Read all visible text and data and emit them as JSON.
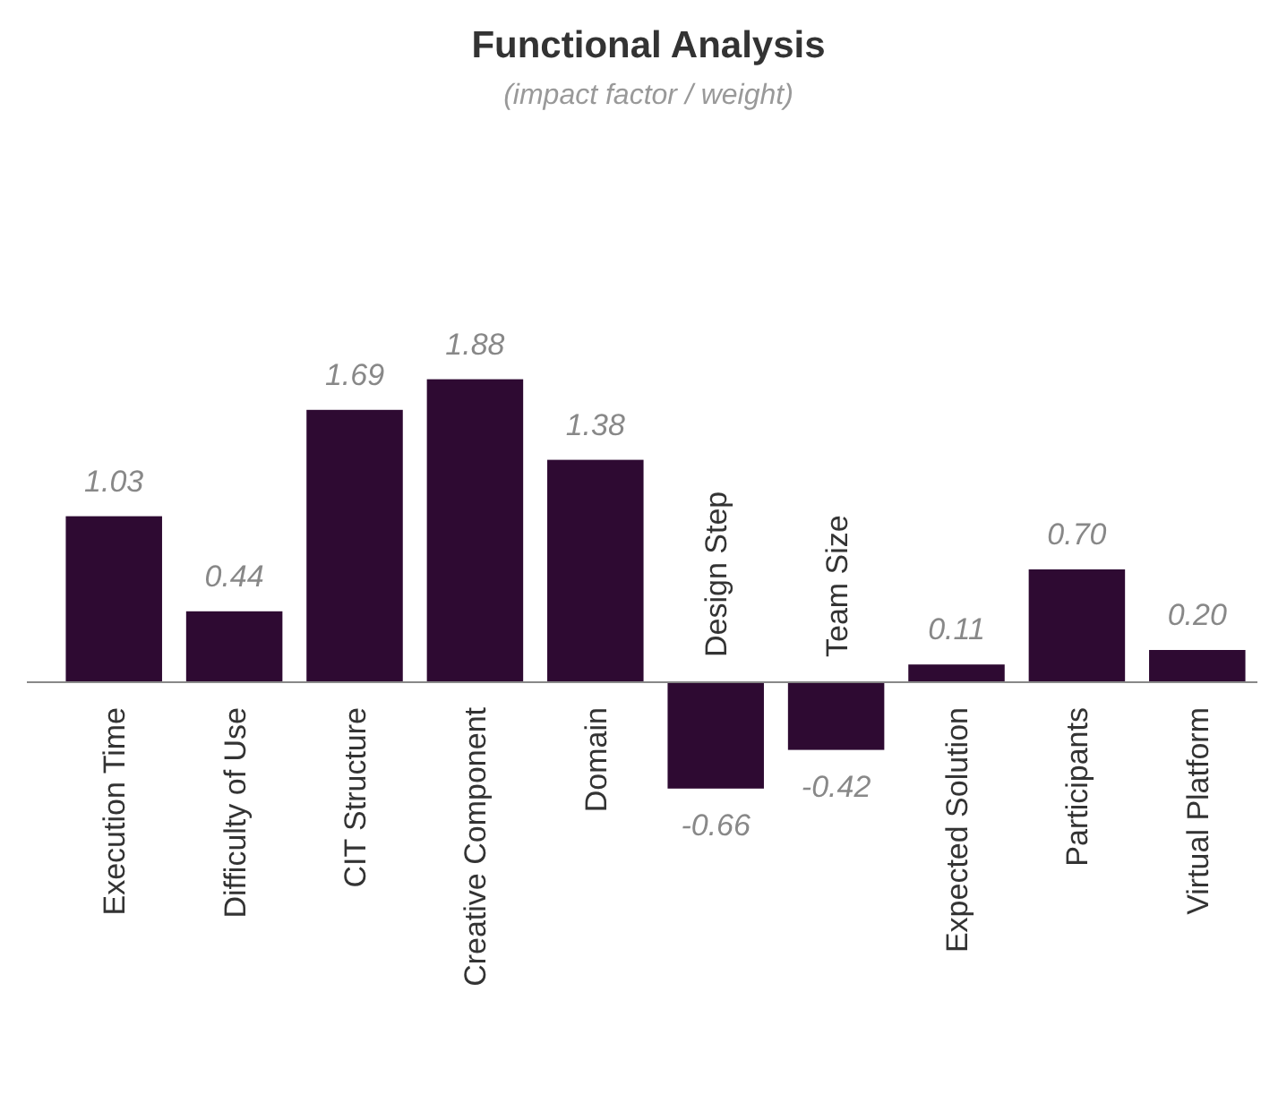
{
  "chart_data": {
    "type": "bar",
    "title": "Functional Analysis",
    "subtitle": "(impact factor / weight)",
    "categories": [
      "Execution Time",
      "Difficulty of Use",
      "CIT Structure",
      "Creative Component",
      "Domain",
      "Design Step",
      "Team Size",
      "Expected Solution",
      "Participants",
      "Virtual Platform"
    ],
    "values": [
      1.03,
      0.44,
      1.69,
      1.88,
      1.38,
      -0.66,
      -0.42,
      0.11,
      0.7,
      0.2
    ],
    "value_labels": [
      "1.03",
      "0.44",
      "1.69",
      "1.88",
      "1.38",
      "-0.66",
      "-0.42",
      "0.11",
      "0.70",
      "0.20"
    ],
    "color": "#2e0a32"
  }
}
